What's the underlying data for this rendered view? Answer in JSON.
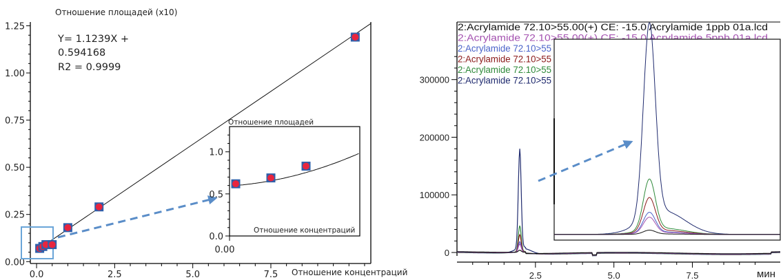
{
  "chart_data": [
    {
      "type": "scatter",
      "title": "",
      "ylabel": "Отношение площадей (x10)",
      "xlabel": "Отношение концентраций",
      "xlim": [
        -0.2,
        10.7
      ],
      "ylim": [
        -0.01,
        1.27
      ],
      "x_ticks": [
        "0.0",
        "2.5",
        "5.0",
        "7.5"
      ],
      "y_ticks": [
        "0.00",
        "0.25",
        "0.50",
        "0.75",
        "1.00",
        "1.25"
      ],
      "equation": [
        "Y= 1.1239X +",
        "0.594168",
        "R2 = 0.9999"
      ],
      "fit_line": {
        "slope": 0.11239,
        "intercept": 0.0594168
      },
      "points": [
        {
          "x": 0.1,
          "y": 0.07
        },
        {
          "x": 0.2,
          "y": 0.08
        },
        {
          "x": 0.3,
          "y": 0.09
        },
        {
          "x": 0.5,
          "y": 0.09
        },
        {
          "x": 1.0,
          "y": 0.18
        },
        {
          "x": 2.0,
          "y": 0.29
        },
        {
          "x": 10.2,
          "y": 1.19
        }
      ],
      "inset": {
        "ylabel": "Отношение площадей",
        "xlabel": "Отношение концентраций",
        "x_ticks": [
          "0.00"
        ],
        "y_ticks": [
          "0.0",
          "0.5",
          "1.0"
        ],
        "ylim": [
          0,
          1.3
        ],
        "points": [
          {
            "x": 0.0,
            "y": 0.62
          },
          {
            "x": 1.0,
            "y": 0.69
          },
          {
            "x": 2.0,
            "y": 0.83
          }
        ]
      },
      "colors": {
        "marker_outer": "#2f5faa",
        "marker_inner": "#e8253f",
        "arrow": "#5a8dc8",
        "zoom_box": "#6aa5d8"
      }
    },
    {
      "type": "line",
      "title": "",
      "xlabel": "мин",
      "xlim": [
        0,
        10.3
      ],
      "ylim": [
        -8000,
        400000
      ],
      "x_ticks": [
        "2.5",
        "5.0",
        "7.5"
      ],
      "y_ticks": [
        "0",
        "100000",
        "200000",
        "300000"
      ],
      "series": [
        {
          "name": "2:Acrylamide 72.10>55.00(+) CE: -15.0 Acrylamide 1ppb 01a.lcd",
          "color": "#111111",
          "peak_height": 3500
        },
        {
          "name": "2:Acrylamide 72.10>55.00(+) CE: -15.0 Acrylamide 5ppb 01a.lcd",
          "color": "#a452b0",
          "peak_height": 14000
        },
        {
          "name": "2:Acrylamide 72.10>55",
          "color": "#4a63c9",
          "peak_height": 18000
        },
        {
          "name": "2:Acrylamide 72.10>55",
          "color": "#8b1a1a",
          "peak_height": 30000
        },
        {
          "name": "2:Acrylamide 72.10>55",
          "color": "#2f8a3a",
          "peak_height": 45000
        },
        {
          "name": "2:Acrylamide 72.10>55",
          "color": "#1f2a6e",
          "peak_height": 172000
        }
      ],
      "peak_time": 2.0,
      "colors": {
        "arrow": "#5a8dc8"
      }
    }
  ]
}
